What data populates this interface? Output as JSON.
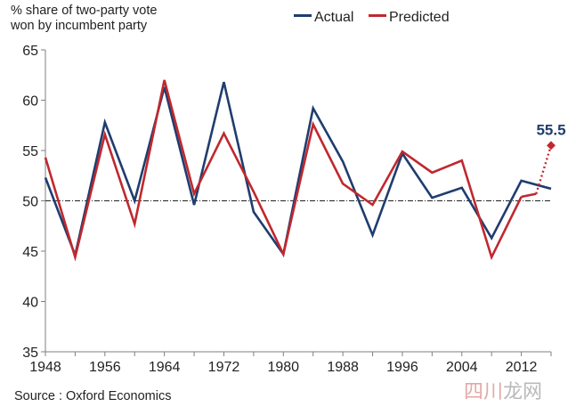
{
  "chart_data": {
    "type": "line",
    "title": "",
    "ylabel": "% share of two-party vote\nwon by incumbent party",
    "xlabel": "",
    "ylim": [
      35,
      65
    ],
    "yticks": [
      35,
      40,
      45,
      50,
      55,
      60,
      65
    ],
    "xlim": [
      1948,
      2016
    ],
    "xticks": [
      1948,
      1956,
      1964,
      1972,
      1980,
      1988,
      1996,
      2004,
      2012
    ],
    "reference_line": 50,
    "legend_position": "top-right",
    "series": [
      {
        "name": "Actual",
        "color": "#1f3d6e",
        "x": [
          1948,
          1952,
          1956,
          1960,
          1964,
          1968,
          1972,
          1976,
          1980,
          1984,
          1988,
          1992,
          1996,
          2000,
          2004,
          2008,
          2012
        ],
        "values": [
          52.3,
          44.6,
          57.8,
          50.0,
          61.3,
          49.6,
          61.8,
          48.9,
          44.7,
          59.2,
          53.9,
          46.6,
          54.7,
          50.3,
          51.3,
          46.3,
          52.0
        ]
      },
      {
        "name": "Predicted",
        "color": "#c0282f",
        "x": [
          1948,
          1952,
          1956,
          1960,
          1964,
          1968,
          1972,
          1976,
          1980,
          1984,
          1988,
          1992,
          1996,
          2000,
          2004,
          2008,
          2012
        ],
        "values": [
          54.3,
          44.4,
          56.6,
          47.7,
          62.0,
          50.7,
          56.7,
          50.9,
          44.7,
          57.6,
          51.7,
          49.6,
          54.9,
          52.8,
          54.0,
          44.4,
          50.4
        ]
      }
    ],
    "actual_2016": 51.2,
    "prediction_segment": {
      "x": [
        2014,
        2016
      ],
      "values": [
        50.7,
        55.5
      ]
    },
    "annotation": {
      "x": 2016,
      "value": 55.5,
      "text": "55.5"
    }
  },
  "source": "Source : Oxford Economics",
  "watermark": {
    "part1": "四川",
    "part2": "龙网"
  }
}
